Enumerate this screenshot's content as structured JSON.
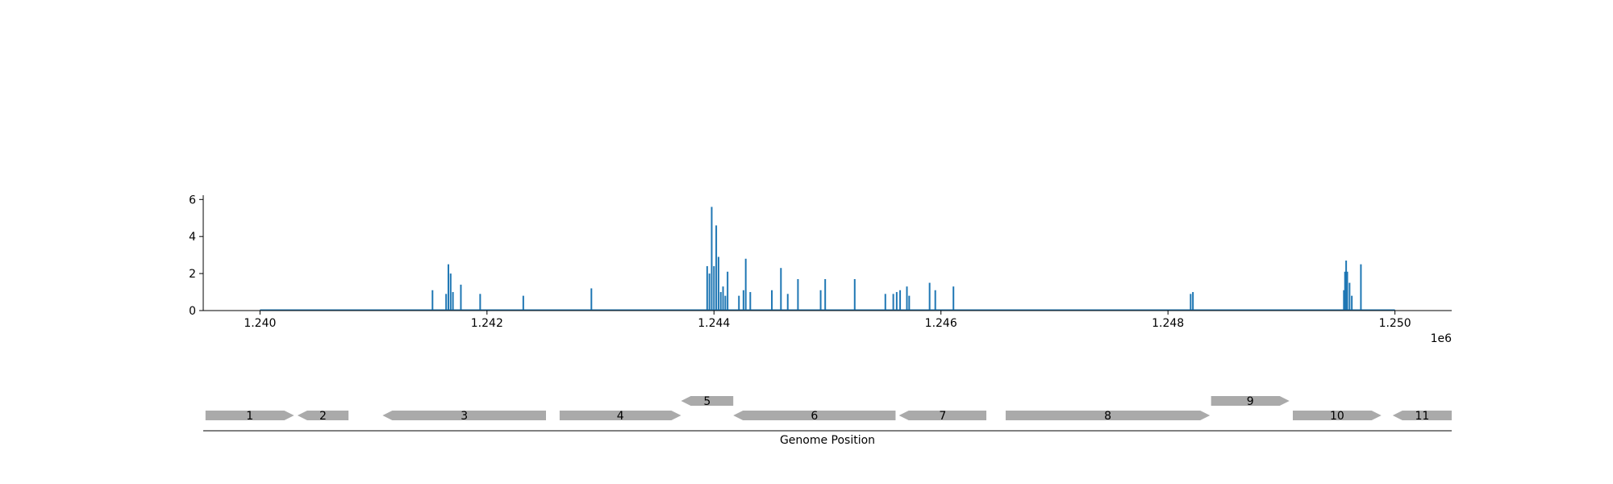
{
  "chart_data": {
    "type": "bar",
    "xlabel": "",
    "ylabel": "",
    "xlim": [
      1239500,
      1250500
    ],
    "ylim": [
      0,
      6.1
    ],
    "x_ticks": [
      1240000,
      1242000,
      1244000,
      1246000,
      1248000,
      1250000
    ],
    "x_tick_labels": [
      "1.240",
      "1.242",
      "1.244",
      "1.246",
      "1.248",
      "1.250"
    ],
    "x_offset_label": "1e6",
    "y_ticks": [
      0,
      2,
      4,
      6
    ],
    "y_tick_labels": [
      "0",
      "2",
      "4",
      "6"
    ],
    "baseline": [
      1240000,
      1250000
    ],
    "bar_color": "#1f77b4",
    "x": [
      1241520,
      1241640,
      1241660,
      1241680,
      1241700,
      1241770,
      1241940,
      1242320,
      1242920,
      1243940,
      1243960,
      1243980,
      1244000,
      1244020,
      1244040,
      1244060,
      1244080,
      1244100,
      1244120,
      1244220,
      1244260,
      1244280,
      1244320,
      1244510,
      1244590,
      1244650,
      1244740,
      1244940,
      1244980,
      1245240,
      1245510,
      1245580,
      1245610,
      1245640,
      1245700,
      1245720,
      1245900,
      1245950,
      1246110,
      1248200,
      1248220,
      1249550,
      1249560,
      1249570,
      1249580,
      1249600,
      1249620,
      1249700
    ],
    "values": [
      1.1,
      0.9,
      2.5,
      2.0,
      1.0,
      1.4,
      0.9,
      0.8,
      1.2,
      2.4,
      2.0,
      5.6,
      2.4,
      4.6,
      2.9,
      1.0,
      1.3,
      0.8,
      2.1,
      0.8,
      1.1,
      2.8,
      1.0,
      1.1,
      2.3,
      0.9,
      1.7,
      1.1,
      1.7,
      1.7,
      0.9,
      0.9,
      1.0,
      1.1,
      1.3,
      0.8,
      1.5,
      1.1,
      1.3,
      0.9,
      1.0,
      1.1,
      2.1,
      2.7,
      2.1,
      1.5,
      0.8,
      2.5
    ]
  },
  "gene_track": {
    "xlabel": "Genome Position",
    "color": "#aaaaaa",
    "genes": [
      {
        "label": "1",
        "start": 1239520,
        "end": 1240300,
        "strand": "+",
        "row": 0
      },
      {
        "label": "2",
        "start": 1240330,
        "end": 1240780,
        "strand": "-",
        "row": 0
      },
      {
        "label": "3",
        "start": 1241080,
        "end": 1242520,
        "strand": "-",
        "row": 0
      },
      {
        "label": "4",
        "start": 1242640,
        "end": 1243710,
        "strand": "+",
        "row": 0
      },
      {
        "label": "5",
        "start": 1243710,
        "end": 1244170,
        "strand": "-",
        "row": 1
      },
      {
        "label": "6",
        "start": 1244170,
        "end": 1245600,
        "strand": "-",
        "row": 0
      },
      {
        "label": "7",
        "start": 1245630,
        "end": 1246400,
        "strand": "-",
        "row": 0
      },
      {
        "label": "8",
        "start": 1246570,
        "end": 1248370,
        "strand": "+",
        "row": 0
      },
      {
        "label": "9",
        "start": 1248380,
        "end": 1249070,
        "strand": "+",
        "row": 1
      },
      {
        "label": "10",
        "start": 1249100,
        "end": 1249880,
        "strand": "+",
        "row": 0
      },
      {
        "label": "11",
        "start": 1249980,
        "end": 1250500,
        "strand": "-",
        "row": 0
      }
    ]
  }
}
